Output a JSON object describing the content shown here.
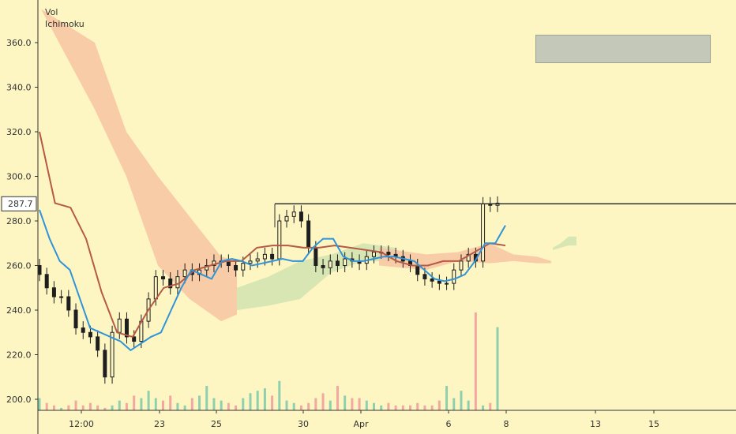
{
  "legend": {
    "volume": "Vol",
    "indicator": "Ichimoku"
  },
  "price_label": "287.7",
  "colors": {
    "background": "#fdf6c3",
    "candle": "#1e1e1e",
    "conversion_line": "#2f94d8",
    "base_line": "#b55a45",
    "cloud_bearish": "#f7c8a4",
    "cloud_bullish": "#d3e4b0",
    "volume_up": "#8fcfae",
    "volume_down": "#f2a8a0",
    "price_line": "#333333"
  },
  "chart_data": {
    "type": "candlestick",
    "title": "",
    "ylim": [
      195,
      370
    ],
    "y_ticks": [
      200,
      220,
      240,
      260,
      280,
      300,
      320,
      340,
      360
    ],
    "y_tick_labels": [
      "200.0",
      "220.0",
      "240.0",
      "260.0",
      "280.0",
      "300.0",
      "320.0",
      "340.0",
      "360.0"
    ],
    "x_tick_labels": [
      "12:00",
      "23",
      "25",
      "30",
      "Apr",
      "6",
      "8",
      "13",
      "15"
    ],
    "horizontal_price_line": 287.7,
    "close_series": [
      256,
      250,
      246,
      246,
      240,
      232,
      230,
      228,
      222,
      210,
      230,
      236,
      228,
      226,
      235,
      245,
      255,
      254,
      250,
      255,
      258,
      256,
      258,
      260,
      262,
      262,
      260,
      258,
      261,
      262,
      263,
      265,
      263,
      280,
      282,
      284,
      280,
      268,
      260,
      259,
      262,
      260,
      263,
      262,
      261,
      264,
      266,
      266,
      265,
      264,
      262,
      260,
      256,
      254,
      253,
      252,
      252,
      258,
      262,
      265,
      262,
      287.7,
      287,
      288
    ],
    "conversion_line": [
      285,
      272,
      262,
      258,
      245,
      232,
      230,
      228,
      226,
      222,
      225,
      228,
      230,
      240,
      250,
      258,
      256,
      254,
      262,
      263,
      262,
      260,
      261,
      262,
      263,
      262,
      262,
      268,
      272,
      272,
      264,
      262,
      262,
      263,
      264,
      264,
      263,
      262,
      258,
      254,
      253,
      254,
      256,
      262,
      270,
      270,
      278
    ],
    "base_line": [
      320,
      288,
      286,
      272,
      248,
      230,
      228,
      240,
      250,
      252,
      258,
      260,
      262,
      262,
      268,
      269,
      269,
      268,
      268,
      269,
      268,
      267,
      266,
      262,
      260,
      260,
      262,
      262,
      266,
      270,
      269
    ],
    "cloud_segments": [
      {
        "name": "bearish",
        "upper": [
          375,
          360,
          320,
          300,
          282,
          264,
          262
        ],
        "lower": [
          375,
          330,
          300,
          260,
          245,
          235,
          238
        ]
      },
      {
        "name": "bullish",
        "upper": [
          250,
          255,
          262,
          265,
          270,
          268
        ],
        "lower": [
          240,
          242,
          245,
          257,
          262,
          262
        ]
      },
      {
        "name": "bearish",
        "upper": [
          268,
          265,
          266,
          270,
          265,
          264,
          262
        ],
        "lower": [
          260,
          258,
          262,
          261,
          262,
          261,
          261
        ]
      },
      {
        "name": "bullish",
        "upper": [
          268,
          270,
          273,
          273
        ],
        "lower": [
          267,
          268,
          269,
          269
        ]
      }
    ],
    "volume": [
      5,
      3,
      2,
      1,
      2,
      4,
      2,
      3,
      2,
      1,
      2,
      4,
      3,
      6,
      5,
      8,
      5,
      4,
      6,
      3,
      2,
      5,
      6,
      10,
      5,
      4,
      3,
      2,
      5,
      7,
      8,
      9,
      6,
      12,
      4,
      3,
      2,
      3,
      5,
      7,
      4,
      10,
      6,
      5,
      5,
      4,
      3,
      2,
      3,
      2,
      2,
      2,
      3,
      2,
      2,
      4,
      10,
      5,
      8,
      4,
      40,
      2,
      3,
      34
    ]
  }
}
